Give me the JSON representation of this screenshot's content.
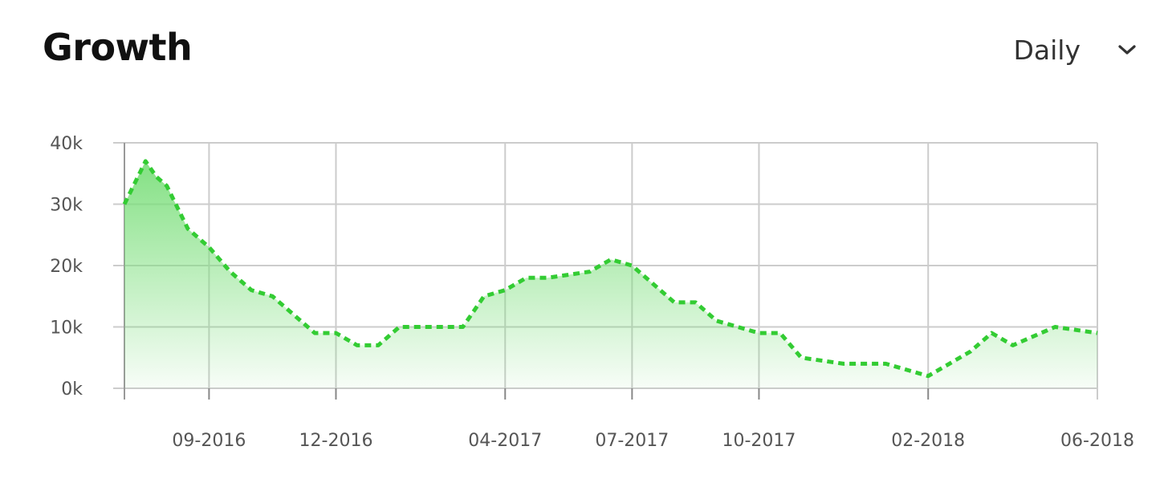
{
  "header": {
    "title": "Growth",
    "period_selected": "Daily",
    "chevron_icon": "chevron-down-icon"
  },
  "colors": {
    "line": "#33cc33",
    "area_top": "#7ddf7d",
    "grid": "#cccccc",
    "tick_text": "#555555"
  },
  "chart_data": {
    "type": "area",
    "title": "Growth",
    "x_start": "2016-07",
    "x_end": "2018-06",
    "xticks": [
      "09-2016",
      "12-2016",
      "04-2017",
      "07-2017",
      "10-2017",
      "02-2018",
      "06-2018"
    ],
    "xtick_months": [
      2,
      5,
      9,
      12,
      15,
      19,
      23
    ],
    "yticks": [
      "0k",
      "10k",
      "20k",
      "30k",
      "40k"
    ],
    "ylim": [
      0,
      40000
    ],
    "grid": true,
    "line_style": "dashed",
    "series": [
      {
        "x": [
          0,
          0.5,
          0.75,
          1.0,
          1.5,
          2.0,
          2.5,
          3.0,
          3.5,
          4.5,
          5.0,
          5.5,
          6.0,
          6.5,
          7.0,
          8.0,
          8.5,
          9.0,
          9.5,
          10.0,
          11.0,
          11.5,
          12.0,
          12.5,
          13.0,
          13.5,
          14.0,
          15.0,
          15.5,
          16.0,
          17.0,
          17.5,
          18.0,
          19.0,
          19.5,
          20.0,
          20.5,
          21.0,
          22.0,
          23.0
        ],
        "values": [
          30000,
          37000,
          34500,
          33000,
          26000,
          23000,
          19000,
          16000,
          15000,
          9000,
          9000,
          7000,
          7000,
          10000,
          10000,
          10000,
          15000,
          16000,
          18000,
          18000,
          19000,
          21000,
          20000,
          17000,
          14000,
          14000,
          11000,
          9000,
          9000,
          5000,
          4000,
          4000,
          4000,
          2000,
          4000,
          6000,
          9000,
          7000,
          10000,
          9000
        ]
      }
    ]
  }
}
